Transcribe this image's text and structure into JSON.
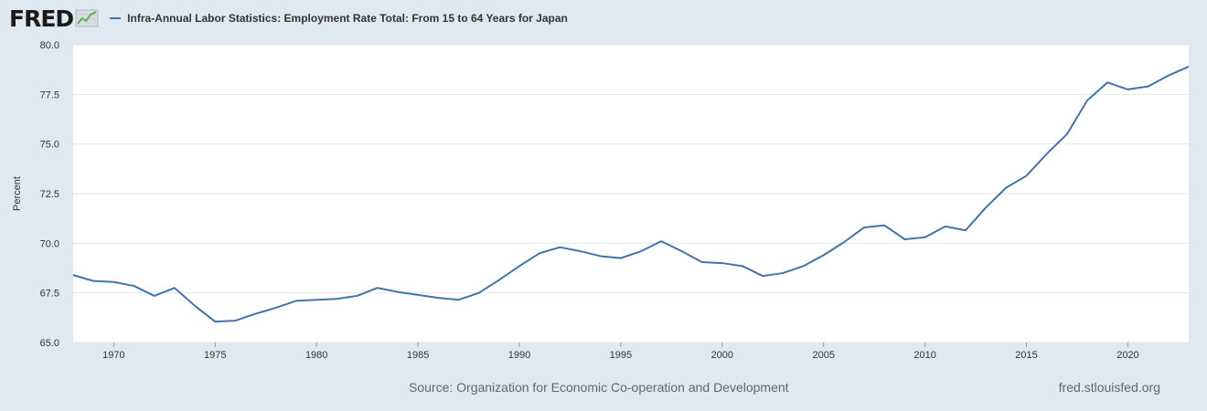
{
  "header": {
    "logo_text": "FRED",
    "logo_icon": "chart-line-icon",
    "series_label": "Infra-Annual Labor Statistics: Employment Rate Total: From 15 to 64 Years for Japan"
  },
  "footer": {
    "source": "Source: Organization for Economic Co-operation and Development",
    "site": "fred.stlouisfed.org"
  },
  "colors": {
    "line": "#4572a7",
    "background": "#e1e9f0",
    "plot": "#ffffff",
    "grid": "#e6e6e6"
  },
  "chart_data": {
    "type": "line",
    "title": "Infra-Annual Labor Statistics: Employment Rate Total: From 15 to 64 Years for Japan",
    "xlabel": "",
    "ylabel": "Percent",
    "xlim": [
      1968,
      2023
    ],
    "ylim": [
      65.0,
      80.0
    ],
    "y_ticks": [
      "65.0",
      "67.5",
      "70.0",
      "72.5",
      "75.0",
      "77.5",
      "80.0"
    ],
    "x_ticks": [
      "1970",
      "1975",
      "1980",
      "1985",
      "1990",
      "1995",
      "2000",
      "2005",
      "2010",
      "2015",
      "2020"
    ],
    "legend": "top-left",
    "grid": true,
    "series": [
      {
        "name": "Employment Rate Total: From 15 to 64 Years for Japan",
        "x": [
          1968,
          1969,
          1970,
          1971,
          1972,
          1973,
          1974,
          1975,
          1976,
          1977,
          1978,
          1979,
          1980,
          1981,
          1982,
          1983,
          1984,
          1985,
          1986,
          1987,
          1988,
          1989,
          1990,
          1991,
          1992,
          1993,
          1994,
          1995,
          1996,
          1997,
          1998,
          1999,
          2000,
          2001,
          2002,
          2003,
          2004,
          2005,
          2006,
          2007,
          2008,
          2009,
          2010,
          2011,
          2012,
          2013,
          2014,
          2015,
          2016,
          2017,
          2018,
          2019,
          2020,
          2021,
          2022,
          2023
        ],
        "values": [
          68.4,
          68.1,
          68.05,
          67.85,
          67.35,
          67.75,
          66.85,
          66.05,
          66.1,
          66.45,
          66.75,
          67.1,
          67.15,
          67.2,
          67.35,
          67.75,
          67.55,
          67.4,
          67.25,
          67.15,
          67.5,
          68.15,
          68.85,
          69.5,
          69.8,
          69.6,
          69.35,
          69.25,
          69.6,
          70.1,
          69.6,
          69.05,
          69.0,
          68.85,
          68.35,
          68.5,
          68.85,
          69.4,
          70.05,
          70.8,
          70.9,
          70.2,
          70.3,
          70.85,
          70.65,
          71.8,
          72.8,
          73.4,
          74.5,
          75.5,
          77.2,
          78.1,
          77.75,
          77.9,
          78.45,
          78.9
        ]
      }
    ]
  }
}
